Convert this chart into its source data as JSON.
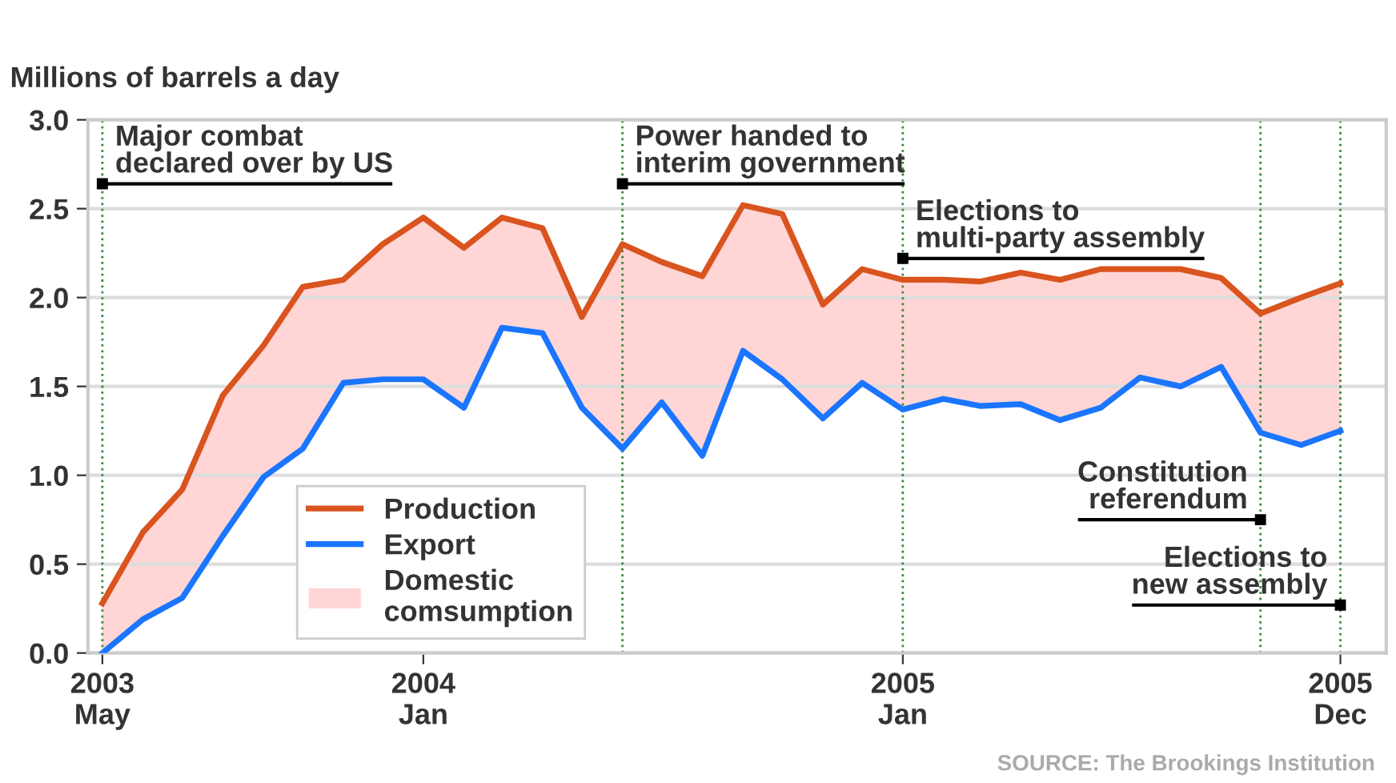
{
  "chart_data": {
    "type": "line",
    "ylabel": "Millions of barrels a day",
    "x": [
      "2003-05",
      "2003-06",
      "2003-07",
      "2003-08",
      "2003-09",
      "2003-10",
      "2003-11",
      "2003-12",
      "2004-01",
      "2004-02",
      "2004-03",
      "2004-04",
      "2004-05",
      "2004-06",
      "2004-07",
      "2004-08",
      "2004-09",
      "2004-10",
      "2004-11",
      "2004-12",
      "2005-01",
      "2005-02",
      "2005-03",
      "2005-04",
      "2005-05",
      "2005-06",
      "2005-07",
      "2005-08",
      "2005-09",
      "2005-10",
      "2005-11",
      "2005-12"
    ],
    "series": [
      {
        "name": "Domestic\ncomsumption",
        "type": "area",
        "color": "#ffd5d5",
        "lower": [
          0.0,
          0.19,
          0.31,
          0.66,
          0.99,
          1.15,
          1.52,
          1.54,
          1.54,
          1.38,
          1.83,
          1.8,
          1.38,
          1.15,
          1.41,
          1.11,
          1.7,
          1.54,
          1.32,
          1.52,
          1.37,
          1.43,
          1.39,
          1.4,
          1.31,
          1.38,
          1.55,
          1.5,
          1.61,
          1.24,
          1.17,
          1.25
        ],
        "upper": [
          0.28,
          0.68,
          0.92,
          1.45,
          1.73,
          2.06,
          2.1,
          2.3,
          2.45,
          2.28,
          2.45,
          2.39,
          1.89,
          2.3,
          2.2,
          2.12,
          2.52,
          2.47,
          1.96,
          2.16,
          2.1,
          2.1,
          2.09,
          2.14,
          2.1,
          2.16,
          2.16,
          2.16,
          2.11,
          1.91,
          2.0,
          2.08
        ],
        "values": [
          null,
          null,
          null,
          null,
          null,
          null,
          null,
          null,
          null,
          null,
          null,
          null,
          null,
          null,
          null,
          null,
          null,
          null,
          null,
          null,
          null,
          null,
          null,
          null,
          null,
          null,
          null,
          null,
          null,
          null,
          null,
          null
        ]
      },
      {
        "name": "Production",
        "type": "line",
        "color": "#d9541e",
        "values": [
          0.28,
          0.68,
          0.92,
          1.45,
          1.73,
          2.06,
          2.1,
          2.3,
          2.45,
          2.28,
          2.45,
          2.39,
          1.89,
          2.3,
          2.2,
          2.12,
          2.52,
          2.47,
          1.96,
          2.16,
          2.1,
          2.1,
          2.09,
          2.14,
          2.1,
          2.16,
          2.16,
          2.16,
          2.11,
          1.91,
          2.0,
          2.08
        ]
      },
      {
        "name": "Export",
        "color": "#1a75ff",
        "values": [
          0.0,
          0.19,
          0.31,
          0.66,
          0.99,
          1.15,
          1.52,
          1.54,
          1.54,
          1.38,
          1.83,
          1.8,
          1.38,
          1.15,
          1.41,
          1.11,
          1.7,
          1.54,
          1.32,
          1.52,
          1.37,
          1.43,
          1.39,
          1.4,
          1.31,
          1.38,
          1.55,
          1.5,
          1.61,
          1.24,
          1.17,
          1.25
        ]
      }
    ],
    "xlim": [
      "2003-04-20",
      "2006-01-05"
    ],
    "xticks": [
      {
        "value": "2003-05",
        "label": "2003\nMay"
      },
      {
        "value": "2004-01",
        "label": "2004\nJan"
      },
      {
        "value": "2005-01",
        "label": "2005\nJan"
      },
      {
        "value": "2005-12",
        "label": "2005\nDec"
      }
    ],
    "ylim": [
      0,
      3.0
    ],
    "yticks": [
      {
        "value": 0,
        "label": "0.0"
      },
      {
        "value": 0.5,
        "label": "0.5"
      },
      {
        "value": 1.0,
        "label": "1.0"
      },
      {
        "value": 1.5,
        "label": "1.5"
      },
      {
        "value": 2.0,
        "label": "2.0"
      },
      {
        "value": 2.5,
        "label": "2.5"
      },
      {
        "value": 3.0,
        "label": "3.0"
      }
    ],
    "ref_lines": [
      {
        "axis": "x",
        "value": "2003-05",
        "label": "Major combat\ndeclared over by US",
        "color": "#3a8a3a",
        "line_style": "dotted"
      },
      {
        "axis": "x",
        "value": "2004-06",
        "label": "Power handed to\ninterim government",
        "color": "#3a8a3a",
        "line_style": "dotted"
      },
      {
        "axis": "x",
        "value": "2005-01",
        "label": "Elections to\nmulti-party assembly",
        "color": "#3a8a3a",
        "line_style": "dotted"
      },
      {
        "axis": "x",
        "value": "2005-10",
        "label": "Constitution\nreferendum",
        "color": "#3a8a3a",
        "line_style": "dotted"
      },
      {
        "axis": "x",
        "value": "2005-12",
        "label": "Elections to\nnew assembly",
        "color": "#3a8a3a",
        "line_style": "dotted"
      }
    ],
    "annotations": [
      "SOURCE: The Brookings Institution"
    ],
    "grid": "y",
    "legend": "bottom left",
    "marker": "none",
    "line_style": "solid"
  }
}
